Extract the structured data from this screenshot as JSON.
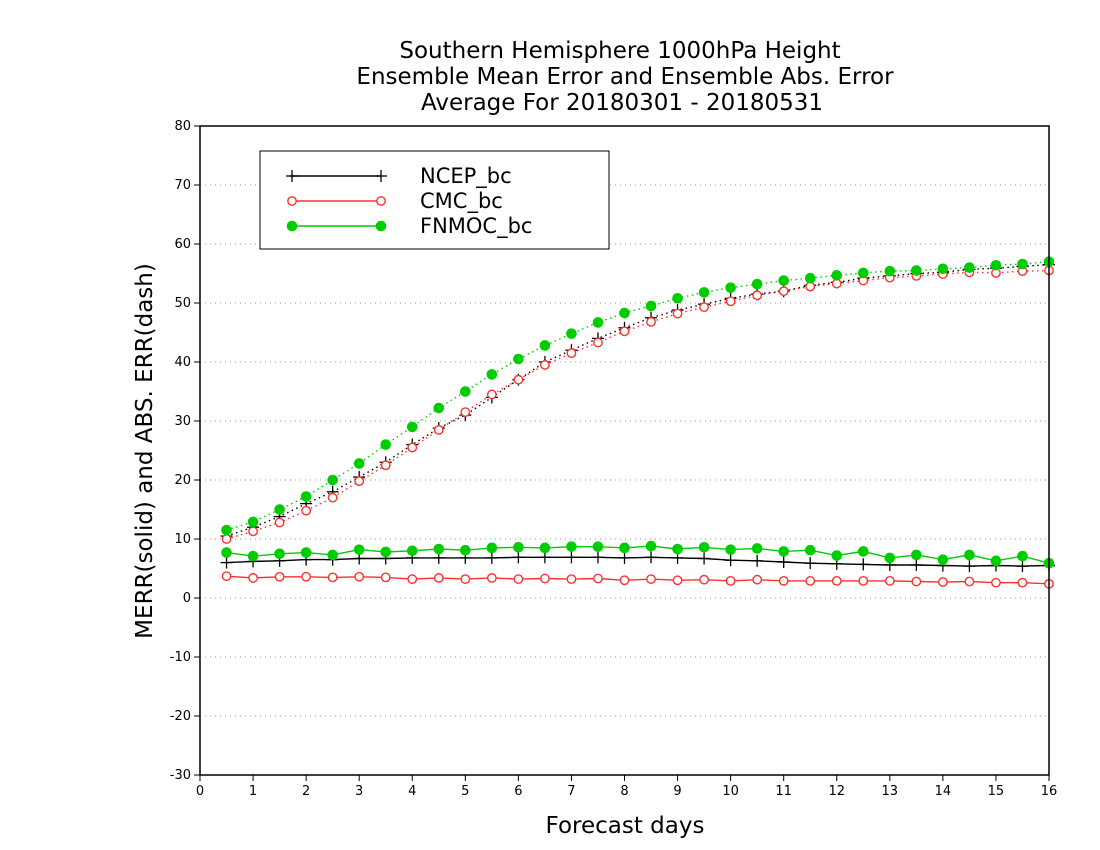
{
  "chart_data": {
    "type": "line",
    "title": [
      "Southern Hemisphere 1000hPa Height",
      "Ensemble Mean Error and Ensemble Abs. Error",
      "Average For 20180301 - 20180531"
    ],
    "xlabel": "Forecast days",
    "ylabel": "MERR(solid) and ABS. ERR(dash)",
    "xlim": [
      0,
      16
    ],
    "ylim": [
      -30,
      80
    ],
    "xticks": [
      0,
      1,
      2,
      3,
      4,
      5,
      6,
      7,
      8,
      9,
      10,
      11,
      12,
      13,
      14,
      15,
      16
    ],
    "yticks": [
      -30,
      -20,
      -10,
      0,
      10,
      20,
      30,
      40,
      50,
      60,
      70,
      80
    ],
    "grid": "horizontal dotted",
    "legend_position": "top-left",
    "x": [
      0.5,
      1,
      1.5,
      2,
      2.5,
      3,
      3.5,
      4,
      4.5,
      5,
      5.5,
      6,
      6.5,
      7,
      7.5,
      8,
      8.5,
      9,
      9.5,
      10,
      10.5,
      11,
      11.5,
      12,
      12.5,
      13,
      13.5,
      14,
      14.5,
      15,
      15.5,
      16
    ],
    "series": [
      {
        "name": "NCEP_bc",
        "color": "#000000",
        "marker": "plus",
        "style": "solid",
        "values": [
          6.0,
          6.2,
          6.3,
          6.5,
          6.5,
          6.7,
          6.7,
          6.8,
          6.8,
          6.8,
          6.8,
          6.9,
          6.9,
          6.9,
          6.9,
          6.8,
          6.9,
          6.8,
          6.7,
          6.4,
          6.3,
          6.1,
          5.9,
          5.8,
          5.7,
          5.6,
          5.6,
          5.5,
          5.4,
          5.5,
          5.4,
          5.5
        ]
      },
      {
        "name": "NCEP_bc",
        "color": "#000000",
        "marker": "plus",
        "style": "dotted",
        "values": [
          10.5,
          12.0,
          13.8,
          16.0,
          18.0,
          20.5,
          23.0,
          26.0,
          28.8,
          31.0,
          34.0,
          37.0,
          40.0,
          42.0,
          44.0,
          45.8,
          47.5,
          48.8,
          49.8,
          50.8,
          51.5,
          52.0,
          53.0,
          53.5,
          54.2,
          54.6,
          55.0,
          55.2,
          55.7,
          55.9,
          56.2,
          56.5
        ]
      },
      {
        "name": "CMC_bc",
        "color": "#ff3030",
        "marker": "circle-open",
        "style": "solid",
        "values": [
          3.7,
          3.4,
          3.6,
          3.6,
          3.5,
          3.6,
          3.5,
          3.2,
          3.4,
          3.2,
          3.4,
          3.2,
          3.3,
          3.2,
          3.3,
          3.0,
          3.2,
          3.0,
          3.1,
          2.9,
          3.1,
          2.9,
          2.9,
          2.9,
          2.9,
          2.9,
          2.8,
          2.7,
          2.8,
          2.6,
          2.6,
          2.4
        ]
      },
      {
        "name": "CMC_bc",
        "color": "#ff3030",
        "marker": "circle-open",
        "style": "dotted",
        "values": [
          10.0,
          11.3,
          12.8,
          14.8,
          17.0,
          19.8,
          22.5,
          25.5,
          28.5,
          31.5,
          34.5,
          37.0,
          39.5,
          41.5,
          43.3,
          45.2,
          46.8,
          48.2,
          49.3,
          50.3,
          51.3,
          52.0,
          52.8,
          53.3,
          53.8,
          54.3,
          54.6,
          54.9,
          55.2,
          55.1,
          55.4,
          55.5
        ]
      },
      {
        "name": "FNMOC_bc",
        "color": "#00cc00",
        "marker": "circle-filled",
        "style": "solid",
        "values": [
          7.7,
          7.1,
          7.5,
          7.7,
          7.3,
          8.2,
          7.8,
          8.0,
          8.3,
          8.1,
          8.5,
          8.6,
          8.5,
          8.7,
          8.7,
          8.5,
          8.8,
          8.3,
          8.6,
          8.2,
          8.4,
          7.9,
          8.1,
          7.2,
          7.9,
          6.8,
          7.3,
          6.5,
          7.3,
          6.3,
          7.1,
          5.9
        ]
      },
      {
        "name": "FNMOC_bc",
        "color": "#00cc00",
        "marker": "circle-filled",
        "style": "dotted",
        "values": [
          11.5,
          12.9,
          15.0,
          17.2,
          20.0,
          22.8,
          26.0,
          29.0,
          32.2,
          35.0,
          37.9,
          40.5,
          42.8,
          44.8,
          46.7,
          48.3,
          49.5,
          50.8,
          51.8,
          52.6,
          53.2,
          53.8,
          54.2,
          54.7,
          55.1,
          55.4,
          55.5,
          55.8,
          56.0,
          56.4,
          56.6,
          57.0
        ]
      }
    ]
  }
}
